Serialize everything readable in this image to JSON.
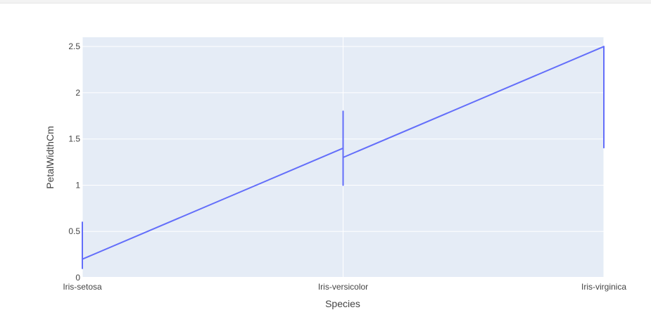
{
  "chart_data": {
    "type": "line",
    "title": "",
    "xlabel": "Species",
    "ylabel": "PetalWidthCm",
    "categories": [
      "Iris-setosa",
      "Iris-versicolor",
      "Iris-virginica"
    ],
    "ylim": [
      0,
      2.6
    ],
    "yticks": [
      0,
      0.5,
      1,
      1.5,
      2,
      2.5
    ],
    "ytick_labels": [
      "0",
      "0.5",
      "1",
      "1.5",
      "2",
      "2.5"
    ],
    "series": [
      {
        "color": "#636efa",
        "points": [
          {
            "x": "Iris-setosa",
            "y": 0.2
          },
          {
            "x": "Iris-setosa",
            "y": 0.6
          },
          {
            "x": "Iris-setosa",
            "y": 0.1
          },
          {
            "x": "Iris-setosa",
            "y": 0.2
          },
          {
            "x": "Iris-versicolor",
            "y": 1.4
          },
          {
            "x": "Iris-versicolor",
            "y": 1.8
          },
          {
            "x": "Iris-versicolor",
            "y": 1.0
          },
          {
            "x": "Iris-versicolor",
            "y": 1.3
          },
          {
            "x": "Iris-virginica",
            "y": 2.5
          },
          {
            "x": "Iris-virginica",
            "y": 1.4
          }
        ]
      }
    ],
    "grid": true,
    "plot_background": "#e5ecf6",
    "grid_color": "#ffffff"
  }
}
